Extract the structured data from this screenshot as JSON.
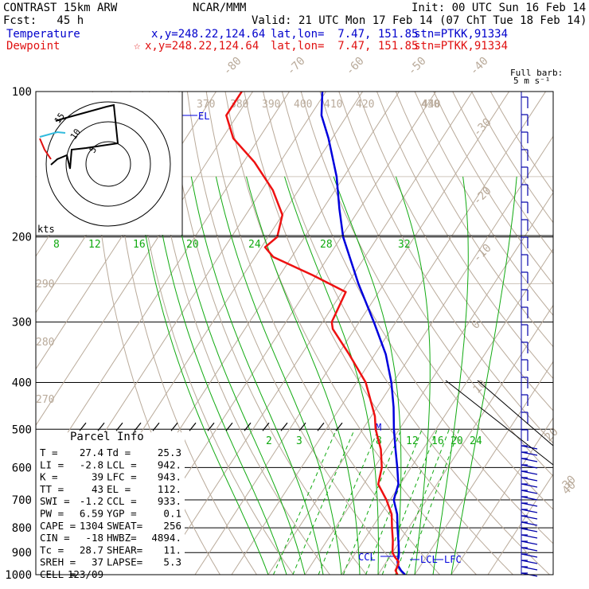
{
  "header": {
    "model": "CONTRAST 15km ARW",
    "org": "NCAR/MMM",
    "init": "Init: 00 UTC Sun 16 Feb 14",
    "fcst": "Fcst:   45 h",
    "valid": "Valid: 21 UTC Mon 17 Feb 14 (07 ChT Tue 18 Feb 14)",
    "temp_label": "Temperature",
    "temp_xy": "x,y=248.22,124.64",
    "temp_latlon": "lat,lon=  7.47, 151.85",
    "temp_stn": "stn=PTKK,91334",
    "dew_label": "Dewpoint",
    "dew_marker": "☆",
    "dew_xy": "x,y=248.22,124.64",
    "dew_latlon": "lat,lon=  7.47, 151.85",
    "dew_stn": "stn=PTKK,91334"
  },
  "barb_legend": {
    "line1": "Full barb:",
    "line2": "5 m s⁻¹"
  },
  "hodograph": {
    "units": "kts",
    "ring_labels": [
      "5",
      "10",
      "15"
    ]
  },
  "panel": {
    "title": "Parcel Info",
    "rows": [
      [
        "T   =",
        "27.4",
        "Td =",
        "25.3"
      ],
      [
        "LI  =",
        "-2.8",
        "LCL =",
        "942."
      ],
      [
        "K   =",
        "39",
        "LFC =",
        "943."
      ],
      [
        "TT  =",
        "43",
        "EL  =",
        "112."
      ],
      [
        "SWI =",
        "-1.2",
        "CCL =",
        "933."
      ],
      [
        "PW  =",
        "6.59",
        "YGP =",
        "0.1"
      ],
      [
        "CAPE =",
        "1304",
        "SWEAT=",
        "256"
      ],
      [
        "CIN  =",
        "-18",
        "HWBZ=",
        "4894."
      ],
      [
        "Tc   =",
        "28.7",
        "SHEAR=",
        "11."
      ],
      [
        "SREH =",
        "37",
        "LAPSE=",
        "5.3"
      ],
      [
        "CELL =",
        "123/09",
        "",
        ""
      ]
    ]
  },
  "chart_data": {
    "type": "line",
    "subtype": "skew-T log-P",
    "y_axis": "pressure (hPa)",
    "y_scale": "log",
    "ylim": [
      1000,
      100
    ],
    "pressure_ticks": [
      "100",
      "200",
      "300",
      "400",
      "500",
      "600",
      "700",
      "800",
      "900",
      "1000"
    ],
    "skew_temp_labels": [
      "-80",
      "-70",
      "-60",
      "-50",
      "-40",
      "-30",
      "-20",
      "-10",
      "0",
      "10",
      "20",
      "30",
      "40"
    ],
    "theta_labels": [
      "370",
      "380",
      "390",
      "400",
      "410",
      "420",
      "430",
      "440",
      "290",
      "280",
      "270"
    ],
    "mixing_ratio_labels_upper": [
      "8",
      "12",
      "16",
      "20",
      "24",
      "28",
      "32"
    ],
    "mixing_ratio_labels_lower": [
      "2",
      "3",
      "8",
      "12",
      "16",
      "20",
      "24"
    ],
    "annotations": {
      "el": "EL",
      "lcl": "LCL",
      "lfc": "LFC",
      "ccl": "CCL",
      "m": "M"
    },
    "series": [
      {
        "name": "Temperature",
        "color": "#0000dd",
        "points": [
          [
            1000,
            27.4
          ],
          [
            980,
            25.5
          ],
          [
            960,
            24.0
          ],
          [
            940,
            23.0
          ],
          [
            920,
            22.5
          ],
          [
            900,
            21.8
          ],
          [
            850,
            19.5
          ],
          [
            800,
            17.0
          ],
          [
            750,
            14.5
          ],
          [
            700,
            11.0
          ],
          [
            650,
            9.5
          ],
          [
            600,
            6.2
          ],
          [
            550,
            2.5
          ],
          [
            500,
            -1.5
          ],
          [
            450,
            -5.5
          ],
          [
            400,
            -10.5
          ],
          [
            350,
            -17.0
          ],
          [
            300,
            -26.0
          ],
          [
            250,
            -37.0
          ],
          [
            200,
            -49.5
          ],
          [
            175,
            -55.5
          ],
          [
            150,
            -62.0
          ],
          [
            125,
            -71.0
          ],
          [
            112,
            -77.0
          ],
          [
            100,
            -81.0
          ]
        ]
      },
      {
        "name": "Dewpoint",
        "color": "#ee1111",
        "points": [
          [
            1000,
            25.3
          ],
          [
            980,
            24.0
          ],
          [
            960,
            23.8
          ],
          [
            940,
            23.3
          ],
          [
            920,
            21.5
          ],
          [
            900,
            20.0
          ],
          [
            850,
            18.0
          ],
          [
            800,
            15.5
          ],
          [
            750,
            13.0
          ],
          [
            700,
            9.0
          ],
          [
            650,
            4.0
          ],
          [
            600,
            2.0
          ],
          [
            550,
            -1.5
          ],
          [
            500,
            -6.5
          ],
          [
            470,
            -9.0
          ],
          [
            400,
            -17.5
          ],
          [
            350,
            -27.0
          ],
          [
            310,
            -36.0
          ],
          [
            300,
            -37.5
          ],
          [
            260,
            -39.0
          ],
          [
            240,
            -51.0
          ],
          [
            220,
            -65.0
          ],
          [
            210,
            -69.0
          ],
          [
            200,
            -67.5
          ],
          [
            180,
            -70.0
          ],
          [
            160,
            -77.0
          ],
          [
            140,
            -87.0
          ],
          [
            125,
            -97.0
          ],
          [
            112,
            -103.0
          ],
          [
            100,
            -103.0
          ]
        ]
      }
    ],
    "wind_barb_column": true
  }
}
